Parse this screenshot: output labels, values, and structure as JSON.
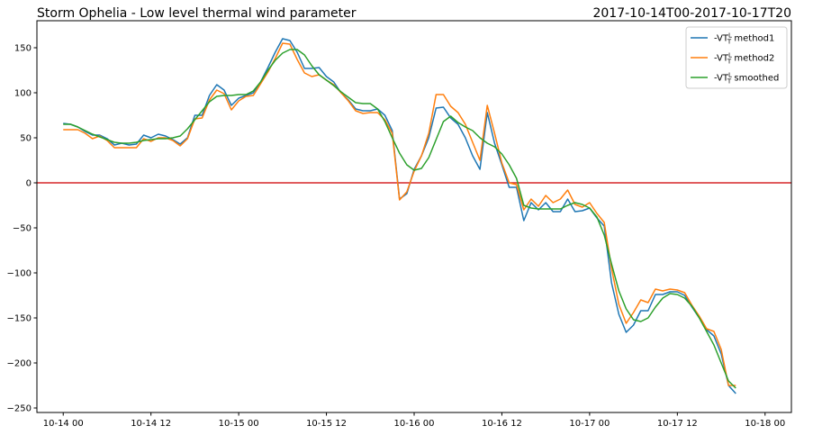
{
  "chart_data": {
    "type": "line",
    "title": "Storm Ophelia - Low level thermal wind parameter",
    "title_right": "2017-10-14T00-2017-10-17T20",
    "xlabel": "",
    "ylabel": "",
    "xlim": [
      -0.15,
      4.15
    ],
    "ylim": [
      -255,
      180
    ],
    "x_tick_labels": [
      "10-14 00",
      "10-14 12",
      "10-15 00",
      "10-15 12",
      "10-16 00",
      "10-16 12",
      "10-17 00",
      "10-17 12",
      "10-18 00"
    ],
    "x_tick_days": [
      0,
      0.5,
      1,
      1.5,
      2,
      2.5,
      3,
      3.5,
      4
    ],
    "y_ticks": [
      150,
      100,
      50,
      0,
      -50,
      -100,
      -150,
      -200,
      -250
    ],
    "y_tick_labels": [
      "150",
      "100",
      "50",
      "0",
      "−50",
      "−100",
      "−150",
      "−200",
      "−250"
    ],
    "reference_line": {
      "y": 0,
      "color": "#d62728"
    },
    "legend_position": "top-right",
    "grid": false,
    "series": [
      {
        "name": "-VT method1",
        "label_base": "-VT",
        "label_sub": "T",
        "label_sup": "L",
        "label_suffix": " method1",
        "color": "#1f77b4",
        "x": [
          0,
          0.0417,
          0.0833,
          0.125,
          0.1667,
          0.2083,
          0.25,
          0.2917,
          0.3333,
          0.375,
          0.4167,
          0.4583,
          0.5,
          0.5417,
          0.5833,
          0.625,
          0.6667,
          0.7083,
          0.75,
          0.7917,
          0.8333,
          0.875,
          0.9167,
          0.9583,
          1.0,
          1.0417,
          1.0833,
          1.125,
          1.1667,
          1.2083,
          1.25,
          1.2917,
          1.3333,
          1.375,
          1.4167,
          1.4583,
          1.5,
          1.5417,
          1.5833,
          1.625,
          1.6667,
          1.7083,
          1.75,
          1.7917,
          1.8333,
          1.875,
          1.9167,
          1.9583,
          2.0,
          2.0417,
          2.0833,
          2.125,
          2.1667,
          2.2083,
          2.25,
          2.2917,
          2.3333,
          2.375,
          2.4167,
          2.4583,
          2.5,
          2.5417,
          2.5833,
          2.625,
          2.6667,
          2.7083,
          2.75,
          2.7917,
          2.8333,
          2.875,
          2.9167,
          2.9583,
          3.0,
          3.0417,
          3.0833,
          3.125,
          3.1667,
          3.2083,
          3.25,
          3.2917,
          3.3333,
          3.375,
          3.4167,
          3.4583,
          3.5,
          3.5417,
          3.5833,
          3.625,
          3.6667,
          3.7083,
          3.75,
          3.7917,
          3.8333
        ],
        "values": [
          66,
          65,
          62,
          57,
          53,
          53,
          49,
          42,
          44,
          42,
          43,
          53,
          50,
          54,
          52,
          48,
          43,
          50,
          75,
          75,
          97,
          109,
          103,
          86,
          94,
          97,
          100,
          112,
          128,
          145,
          160,
          158,
          145,
          127,
          127,
          128,
          118,
          112,
          100,
          92,
          82,
          80,
          80,
          82,
          75,
          58,
          -18,
          -12,
          15,
          30,
          50,
          83,
          84,
          72,
          65,
          50,
          30,
          15,
          78,
          44,
          20,
          -5,
          -5,
          -42,
          -22,
          -30,
          -22,
          -32,
          -32,
          -18,
          -32,
          -31,
          -28,
          -39,
          -48,
          -111,
          -146,
          -166,
          -158,
          -142,
          -142,
          -124,
          -124,
          -121,
          -121,
          -125,
          -138,
          -150,
          -163,
          -170,
          -190,
          -225,
          -234
        ]
      },
      {
        "name": "-VT method2",
        "label_base": "-VT",
        "label_sub": "T",
        "label_sup": "L",
        "label_suffix": " method2",
        "color": "#ff7f0e",
        "x": [
          0,
          0.0417,
          0.0833,
          0.125,
          0.1667,
          0.2083,
          0.25,
          0.2917,
          0.3333,
          0.375,
          0.4167,
          0.4583,
          0.5,
          0.5417,
          0.5833,
          0.625,
          0.6667,
          0.7083,
          0.75,
          0.7917,
          0.8333,
          0.875,
          0.9167,
          0.9583,
          1.0,
          1.0417,
          1.0833,
          1.125,
          1.1667,
          1.2083,
          1.25,
          1.2917,
          1.3333,
          1.375,
          1.4167,
          1.4583,
          1.5,
          1.5417,
          1.5833,
          1.625,
          1.6667,
          1.7083,
          1.75,
          1.7917,
          1.8333,
          1.875,
          1.9167,
          1.9583,
          2.0,
          2.0417,
          2.0833,
          2.125,
          2.1667,
          2.2083,
          2.25,
          2.2917,
          2.3333,
          2.375,
          2.4167,
          2.4583,
          2.5,
          2.5417,
          2.5833,
          2.625,
          2.6667,
          2.7083,
          2.75,
          2.7917,
          2.8333,
          2.875,
          2.9167,
          2.9583,
          3.0,
          3.0417,
          3.0833,
          3.125,
          3.1667,
          3.2083,
          3.25,
          3.2917,
          3.3333,
          3.375,
          3.4167,
          3.4583,
          3.5,
          3.5417,
          3.5833,
          3.625,
          3.6667,
          3.7083,
          3.75,
          3.7917,
          3.8333
        ],
        "values": [
          59,
          59,
          59,
          55,
          49,
          52,
          47,
          39,
          39,
          39,
          39,
          49,
          46,
          50,
          50,
          47,
          41,
          49,
          71,
          72,
          92,
          103,
          99,
          81,
          91,
          96,
          97,
          110,
          123,
          138,
          155,
          154,
          137,
          122,
          118,
          120,
          114,
          109,
          100,
          91,
          80,
          77,
          78,
          78,
          70,
          55,
          -19,
          -10,
          13,
          30,
          55,
          98,
          98,
          85,
          78,
          65,
          45,
          25,
          86,
          55,
          22,
          0,
          -2,
          -30,
          -18,
          -26,
          -14,
          -22,
          -18,
          -8,
          -24,
          -27,
          -22,
          -34,
          -44,
          -95,
          -135,
          -156,
          -144,
          -130,
          -133,
          -118,
          -120,
          -118,
          -119,
          -122,
          -136,
          -148,
          -162,
          -165,
          -185,
          -225,
          -225
        ]
      },
      {
        "name": "-VT smoothed",
        "label_base": "-VT",
        "label_sub": "T",
        "label_sup": "L",
        "label_suffix": " smoothed",
        "color": "#2ca02c",
        "x": [
          0,
          0.0417,
          0.0833,
          0.125,
          0.1667,
          0.2083,
          0.25,
          0.2917,
          0.3333,
          0.375,
          0.4167,
          0.4583,
          0.5,
          0.5417,
          0.5833,
          0.625,
          0.6667,
          0.7083,
          0.75,
          0.7917,
          0.8333,
          0.875,
          0.9167,
          0.9583,
          1.0,
          1.0417,
          1.0833,
          1.125,
          1.1667,
          1.2083,
          1.25,
          1.2917,
          1.3333,
          1.375,
          1.4167,
          1.4583,
          1.5,
          1.5417,
          1.5833,
          1.625,
          1.6667,
          1.7083,
          1.75,
          1.7917,
          1.8333,
          1.875,
          1.9167,
          1.9583,
          2.0,
          2.0417,
          2.0833,
          2.125,
          2.1667,
          2.2083,
          2.25,
          2.2917,
          2.3333,
          2.375,
          2.4167,
          2.4583,
          2.5,
          2.5417,
          2.5833,
          2.625,
          2.6667,
          2.7083,
          2.75,
          2.7917,
          2.8333,
          2.875,
          2.9167,
          2.9583,
          3.0,
          3.0417,
          3.0833,
          3.125,
          3.1667,
          3.2083,
          3.25,
          3.2917,
          3.3333,
          3.375,
          3.4167,
          3.4583,
          3.5,
          3.5417,
          3.5833,
          3.625,
          3.6667,
          3.7083,
          3.75,
          3.7917,
          3.8333
        ],
        "values": [
          65,
          65,
          62,
          58,
          54,
          51,
          48,
          45,
          44,
          44,
          45,
          47,
          48,
          49,
          49,
          50,
          52,
          60,
          70,
          80,
          90,
          96,
          97,
          97,
          98,
          98,
          102,
          112,
          125,
          136,
          144,
          148,
          148,
          142,
          130,
          120,
          114,
          108,
          101,
          95,
          89,
          88,
          88,
          82,
          68,
          50,
          33,
          20,
          14,
          16,
          28,
          48,
          68,
          74,
          67,
          62,
          58,
          50,
          44,
          40,
          32,
          20,
          5,
          -25,
          -28,
          -29,
          -29,
          -29,
          -29,
          -25,
          -22,
          -24,
          -28,
          -38,
          -58,
          -90,
          -120,
          -140,
          -152,
          -154,
          -150,
          -138,
          -128,
          -123,
          -124,
          -128,
          -137,
          -150,
          -165,
          -180,
          -200,
          -220,
          -228
        ]
      }
    ]
  }
}
